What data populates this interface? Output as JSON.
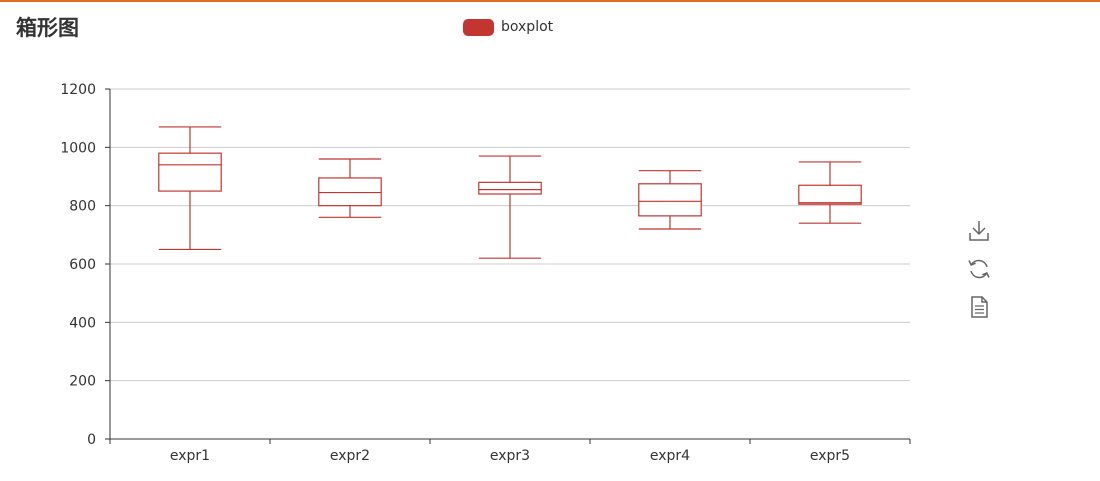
{
  "title": "箱形图",
  "legend": {
    "label": "boxplot"
  },
  "colors": {
    "series": "#c23531",
    "grid": "#cccccc",
    "axis": "#333333",
    "accent_border": "#e06c1f"
  },
  "toolbox": [
    {
      "icon": "download-icon"
    },
    {
      "icon": "refresh-icon"
    },
    {
      "icon": "data-view-icon"
    }
  ],
  "chart_data": {
    "type": "boxplot",
    "title": "箱形图",
    "categories": [
      "expr1",
      "expr2",
      "expr3",
      "expr4",
      "expr5"
    ],
    "series": [
      {
        "name": "boxplot",
        "boxes": [
          {
            "min": 650,
            "q1": 850,
            "median": 940,
            "q3": 980,
            "max": 1070
          },
          {
            "min": 760,
            "q1": 800,
            "median": 845,
            "q3": 895,
            "max": 960
          },
          {
            "min": 620,
            "q1": 840,
            "median": 855,
            "q3": 880,
            "max": 970
          },
          {
            "min": 720,
            "q1": 765,
            "median": 815,
            "q3": 875,
            "max": 920
          },
          {
            "min": 740,
            "q1": 805,
            "median": 810,
            "q3": 870,
            "max": 950
          }
        ]
      }
    ],
    "yticks": [
      0,
      200,
      400,
      600,
      800,
      1000,
      1200
    ],
    "ylim": [
      0,
      1200
    ],
    "grid": true,
    "legend_position": "top-center"
  }
}
